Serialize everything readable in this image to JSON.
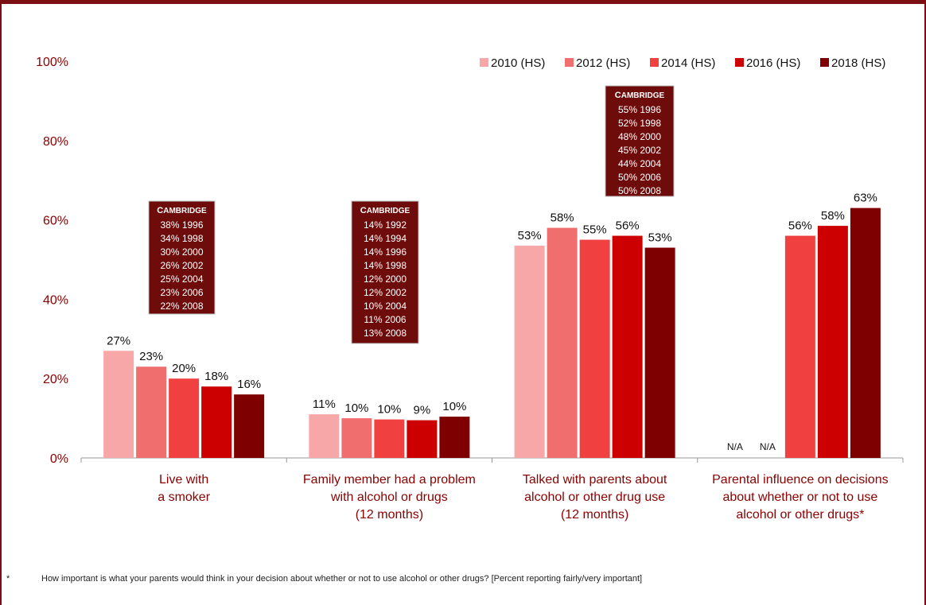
{
  "chart_data": {
    "type": "bar",
    "ylim": [
      0,
      100
    ],
    "yticks": [
      "0%",
      "20%",
      "40%",
      "60%",
      "80%",
      "100%"
    ],
    "categories": [
      [
        "Live with",
        "a smoker"
      ],
      [
        "Family member had a problem",
        "with alcohol or drugs",
        "(12 months)"
      ],
      [
        "Talked with parents about",
        "alcohol or other drug use",
        "(12 months)"
      ],
      [
        "Parental influence on decisions",
        "about whether or not to use",
        "alcohol or other drugs*"
      ]
    ],
    "series": [
      {
        "name": "2010 (HS)",
        "color": "#f7a7a8",
        "values": [
          27,
          11,
          53.5,
          null
        ],
        "labels": [
          "27%",
          "11%",
          "53%",
          "N/A"
        ]
      },
      {
        "name": "2012 (HS)",
        "color": "#f06e6e",
        "values": [
          23,
          10,
          58,
          null
        ],
        "labels": [
          "23%",
          "10%",
          "58%",
          "N/A"
        ]
      },
      {
        "name": "2014 (HS)",
        "color": "#f04040",
        "values": [
          20,
          9.7,
          55,
          56
        ],
        "labels": [
          "20%",
          "10%",
          "55%",
          "56%"
        ]
      },
      {
        "name": "2016 (HS)",
        "color": "#cc0000",
        "values": [
          18,
          9.5,
          56,
          58.5
        ],
        "labels": [
          "18%",
          "9%",
          "56%",
          "58%"
        ]
      },
      {
        "name": "2018 (HS)",
        "color": "#7f0000",
        "values": [
          16,
          10.4,
          53,
          63
        ],
        "labels": [
          "16%",
          "10%",
          "53%",
          "63%"
        ]
      }
    ],
    "legend_position": "top-right",
    "cambridge_boxes": [
      {
        "category_index": 0,
        "title": "Cambridge",
        "entries": [
          "38% 1996",
          "34% 1998",
          "30% 2000",
          "26% 2002",
          "25% 2004",
          "23% 2006",
          "22% 2008"
        ]
      },
      {
        "category_index": 1,
        "title": "Cambridge",
        "entries": [
          "14% 1992",
          "14% 1994",
          "14% 1996",
          "14% 1998",
          "12% 2000",
          "12% 2002",
          "10% 2004",
          "11% 2006",
          "13% 2008"
        ]
      },
      {
        "category_index": 2,
        "title": "Cambridge",
        "entries": [
          "55% 1996",
          "52% 1998",
          "48% 2000",
          "45% 2002",
          "44% 2004",
          "50% 2006",
          "50% 2008"
        ]
      }
    ]
  },
  "footnote": {
    "mark": "*",
    "text": "How important is what your parents would think in your decision about whether or not to use alcohol or other drugs?  [Percent reporting fairly/very important]"
  }
}
